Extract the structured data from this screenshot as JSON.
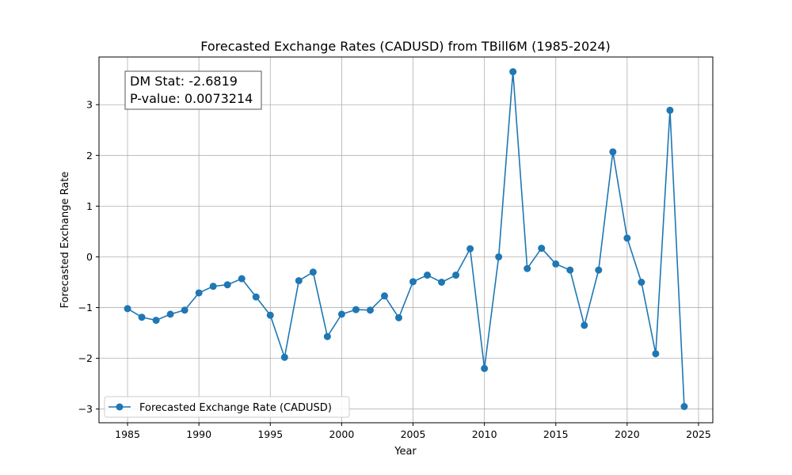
{
  "chart_data": {
    "type": "line",
    "title": "Forecasted Exchange Rates (CADUSD) from TBill6M (1985-2024)",
    "xlabel": "Year",
    "ylabel": "Forecasted Exchange Rate",
    "xlim": [
      1983,
      2026
    ],
    "ylim": [
      -3.27,
      3.94
    ],
    "xticks": [
      1985,
      1990,
      1995,
      2000,
      2005,
      2010,
      2015,
      2020,
      2025
    ],
    "yticks": [
      -3,
      -2,
      -1,
      0,
      1,
      2,
      3
    ],
    "ytick_labels": [
      "−3",
      "−2",
      "−1",
      "0",
      "1",
      "2",
      "3"
    ],
    "grid": true,
    "legend_position": "lower-left",
    "color": "#1f77b4",
    "series": [
      {
        "name": "Forecasted Exchange Rate (CADUSD)",
        "x": [
          1985,
          1986,
          1987,
          1988,
          1989,
          1990,
          1991,
          1992,
          1993,
          1994,
          1995,
          1996,
          1997,
          1998,
          1999,
          2000,
          2001,
          2002,
          2003,
          2004,
          2005,
          2006,
          2007,
          2008,
          2009,
          2010,
          2011,
          2012,
          2013,
          2014,
          2015,
          2016,
          2017,
          2018,
          2019,
          2020,
          2021,
          2022,
          2023,
          2024
        ],
        "values": [
          -1.02,
          -1.19,
          -1.25,
          -1.13,
          -1.05,
          -0.71,
          -0.58,
          -0.55,
          -0.43,
          -0.79,
          -1.15,
          -1.98,
          -0.47,
          -0.3,
          -1.57,
          -1.13,
          -1.04,
          -1.05,
          -0.77,
          -1.2,
          -0.49,
          -0.36,
          -0.5,
          -0.36,
          0.16,
          -2.2,
          0.0,
          3.65,
          -0.23,
          0.17,
          -0.14,
          -0.26,
          -1.35,
          -0.26,
          2.07,
          0.37,
          -0.5,
          -1.91,
          2.89,
          -2.95
        ]
      }
    ],
    "annotation": {
      "line1": "DM Stat: -2.6819",
      "line2": "P-value: 0.0073214"
    }
  }
}
